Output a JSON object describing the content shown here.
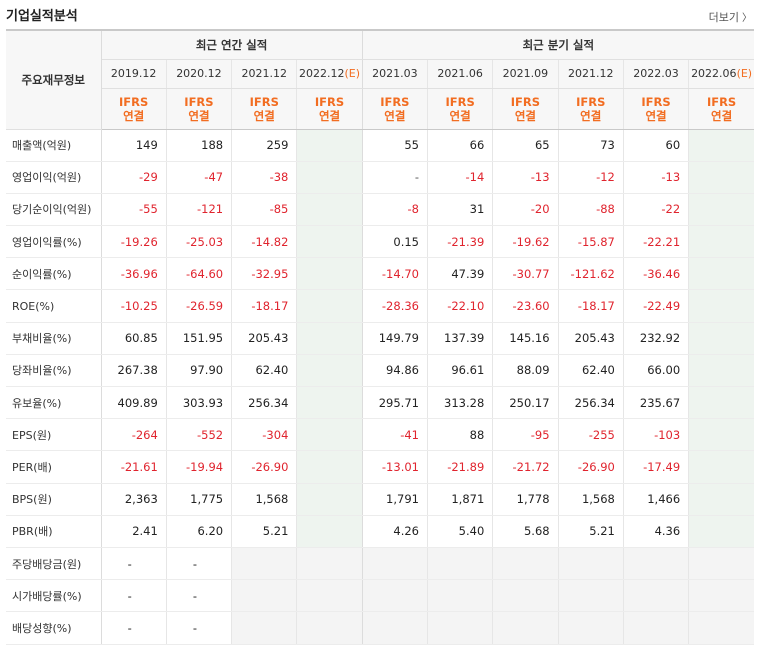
{
  "title": "기업실적분석",
  "more_label": "더보기",
  "header": {
    "rowhead": "주요재무정보",
    "annual_group": "최근 연간 실적",
    "quarter_group": "최근 분기 실적",
    "annual_periods": [
      "2019.12",
      "2020.12",
      "2021.12",
      "2022.12(E)"
    ],
    "quarter_periods": [
      "2021.03",
      "2021.06",
      "2021.09",
      "2021.12",
      "2022.03",
      "2022.06(E)"
    ],
    "ifrs_line1": "IFRS",
    "ifrs_line2": "연결"
  },
  "rows": [
    {
      "label": "매출액(억원)",
      "values": [
        "149",
        "188",
        "259",
        "",
        "55",
        "66",
        "65",
        "73",
        "60",
        ""
      ]
    },
    {
      "label": "영업이익(억원)",
      "values": [
        "-29",
        "-47",
        "-38",
        "",
        "-",
        "-14",
        "-13",
        "-12",
        "-13",
        ""
      ]
    },
    {
      "label": "당기순이익(억원)",
      "values": [
        "-55",
        "-121",
        "-85",
        "",
        "-8",
        "31",
        "-20",
        "-88",
        "-22",
        ""
      ]
    },
    {
      "label": "영업이익률(%)",
      "values": [
        "-19.26",
        "-25.03",
        "-14.82",
        "",
        "0.15",
        "-21.39",
        "-19.62",
        "-15.87",
        "-22.21",
        ""
      ]
    },
    {
      "label": "순이익률(%)",
      "values": [
        "-36.96",
        "-64.60",
        "-32.95",
        "",
        "-14.70",
        "47.39",
        "-30.77",
        "-121.62",
        "-36.46",
        ""
      ]
    },
    {
      "label": "ROE(%)",
      "values": [
        "-10.25",
        "-26.59",
        "-18.17",
        "",
        "-28.36",
        "-22.10",
        "-23.60",
        "-18.17",
        "-22.49",
        ""
      ]
    },
    {
      "label": "부채비율(%)",
      "values": [
        "60.85",
        "151.95",
        "205.43",
        "",
        "149.79",
        "137.39",
        "145.16",
        "205.43",
        "232.92",
        ""
      ]
    },
    {
      "label": "당좌비율(%)",
      "values": [
        "267.38",
        "97.90",
        "62.40",
        "",
        "94.86",
        "96.61",
        "88.09",
        "62.40",
        "66.00",
        ""
      ]
    },
    {
      "label": "유보율(%)",
      "values": [
        "409.89",
        "303.93",
        "256.34",
        "",
        "295.71",
        "313.28",
        "250.17",
        "256.34",
        "235.67",
        ""
      ]
    },
    {
      "label": "EPS(원)",
      "values": [
        "-264",
        "-552",
        "-304",
        "",
        "-41",
        "88",
        "-95",
        "-255",
        "-103",
        ""
      ]
    },
    {
      "label": "PER(배)",
      "values": [
        "-21.61",
        "-19.94",
        "-26.90",
        "",
        "-13.01",
        "-21.89",
        "-21.72",
        "-26.90",
        "-17.49",
        ""
      ]
    },
    {
      "label": "BPS(원)",
      "values": [
        "2,363",
        "1,775",
        "1,568",
        "",
        "1,791",
        "1,871",
        "1,778",
        "1,568",
        "1,466",
        ""
      ]
    },
    {
      "label": "PBR(배)",
      "values": [
        "2.41",
        "6.20",
        "5.21",
        "",
        "4.26",
        "5.40",
        "5.68",
        "5.21",
        "4.36",
        ""
      ]
    },
    {
      "label": "주당배당금(원)",
      "values": [
        "-",
        "-",
        "",
        "",
        "",
        "",
        "",
        "",
        "",
        ""
      ]
    },
    {
      "label": "시가배당률(%)",
      "values": [
        "-",
        "-",
        "",
        "",
        "",
        "",
        "",
        "",
        "",
        ""
      ]
    },
    {
      "label": "배당성향(%)",
      "values": [
        "-",
        "-",
        "",
        "",
        "",
        "",
        "",
        "",
        "",
        ""
      ]
    }
  ],
  "colors": {
    "negative": "#e0242e",
    "ifrs": "#f26d21",
    "estimate_bg": "#eef4ef"
  }
}
